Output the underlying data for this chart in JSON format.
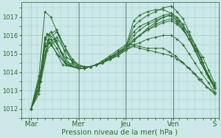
{
  "xlabel": "Pression niveau de la mer( hPa )",
  "bg_color": "#cce8e8",
  "line_color": "#2d6b2d",
  "grid_color": "#a0cccc",
  "label_color": "#2d6b2d",
  "ylim": [
    1011.5,
    1017.8
  ],
  "xlim": [
    0,
    200
  ],
  "day_labels": [
    "Mar",
    "Mer",
    "Jeu",
    "Ven",
    "S"
  ],
  "day_positions": [
    10,
    58,
    106,
    154,
    196
  ],
  "yticks": [
    1012,
    1013,
    1014,
    1015,
    1016,
    1017
  ],
  "ytick_fontsize": 6.5,
  "xtick_fontsize": 7,
  "xlabel_fontsize": 7.5,
  "series": [
    {
      "x": [
        10,
        20,
        28,
        36,
        44,
        52,
        58,
        64,
        70,
        76,
        82,
        90,
        98,
        106,
        114,
        120,
        128,
        136,
        144,
        152,
        158,
        164,
        170,
        176,
        182,
        190,
        196
      ],
      "y": [
        1012.0,
        1013.8,
        1015.8,
        1016.2,
        1015.4,
        1014.7,
        1014.4,
        1014.3,
        1014.3,
        1014.4,
        1014.5,
        1014.8,
        1015.0,
        1015.2,
        1015.5,
        1015.6,
        1015.8,
        1015.9,
        1016.0,
        1016.0,
        1015.8,
        1015.5,
        1015.0,
        1014.5,
        1014.0,
        1013.4,
        1012.9
      ]
    },
    {
      "x": [
        10,
        20,
        28,
        36,
        44,
        52,
        58,
        64,
        70,
        76,
        82,
        90,
        98,
        106,
        114,
        120,
        128,
        136,
        144,
        152,
        158,
        164,
        170,
        176,
        182,
        190,
        196
      ],
      "y": [
        1012.0,
        1013.5,
        1015.6,
        1015.9,
        1015.2,
        1014.6,
        1014.3,
        1014.3,
        1014.3,
        1014.4,
        1014.5,
        1014.7,
        1015.0,
        1015.3,
        1015.8,
        1016.0,
        1016.3,
        1016.5,
        1016.7,
        1016.8,
        1016.6,
        1016.3,
        1015.8,
        1015.2,
        1014.5,
        1013.8,
        1013.2
      ]
    },
    {
      "x": [
        10,
        18,
        26,
        34,
        42,
        50,
        58,
        64,
        70,
        76,
        82,
        90,
        98,
        106,
        114,
        120,
        128,
        136,
        144,
        152,
        158,
        164,
        170,
        176,
        182,
        190,
        196
      ],
      "y": [
        1012.0,
        1013.2,
        1015.2,
        1015.7,
        1015.0,
        1014.4,
        1014.2,
        1014.2,
        1014.3,
        1014.4,
        1014.5,
        1014.7,
        1014.9,
        1015.2,
        1015.7,
        1016.0,
        1016.4,
        1016.7,
        1017.0,
        1017.1,
        1016.8,
        1016.4,
        1015.8,
        1015.2,
        1014.5,
        1013.7,
        1013.1
      ]
    },
    {
      "x": [
        10,
        18,
        26,
        34,
        40,
        48,
        58,
        64,
        70,
        76,
        82,
        90,
        98,
        106,
        114,
        120,
        128,
        136,
        144,
        152,
        158,
        164,
        170,
        176,
        182,
        190,
        196
      ],
      "y": [
        1012.0,
        1013.5,
        1016.1,
        1015.8,
        1015.1,
        1014.4,
        1014.2,
        1014.2,
        1014.3,
        1014.4,
        1014.5,
        1014.8,
        1015.1,
        1015.3,
        1015.7,
        1016.0,
        1016.3,
        1016.6,
        1016.8,
        1016.9,
        1016.7,
        1016.3,
        1015.8,
        1015.2,
        1014.5,
        1013.7,
        1013.1
      ]
    },
    {
      "x": [
        10,
        18,
        24,
        30,
        38,
        46,
        58,
        64,
        70,
        76,
        82,
        90,
        98,
        106,
        114,
        120,
        128,
        136,
        144,
        150,
        156,
        162,
        168,
        174,
        180,
        188,
        196
      ],
      "y": [
        1012.0,
        1013.8,
        1017.3,
        1017.0,
        1016.0,
        1014.8,
        1014.4,
        1014.3,
        1014.3,
        1014.4,
        1014.6,
        1014.9,
        1015.2,
        1015.5,
        1015.5,
        1015.4,
        1015.3,
        1015.3,
        1015.3,
        1015.1,
        1014.9,
        1014.6,
        1014.3,
        1014.0,
        1013.6,
        1013.2,
        1012.8
      ]
    },
    {
      "x": [
        10,
        18,
        24,
        30,
        38,
        46,
        58,
        64,
        70,
        76,
        82,
        90,
        98,
        106,
        114,
        120,
        128,
        136,
        144,
        150,
        158,
        164,
        170,
        178,
        184,
        190,
        196
      ],
      "y": [
        1012.0,
        1013.2,
        1015.9,
        1015.5,
        1014.9,
        1014.4,
        1014.2,
        1014.2,
        1014.3,
        1014.4,
        1014.6,
        1014.8,
        1015.0,
        1015.3,
        1016.0,
        1016.3,
        1016.6,
        1016.8,
        1017.0,
        1017.1,
        1016.8,
        1016.4,
        1015.8,
        1015.2,
        1014.5,
        1013.8,
        1013.1
      ]
    },
    {
      "x": [
        10,
        18,
        24,
        30,
        36,
        44,
        58,
        64,
        70,
        76,
        82,
        90,
        98,
        106,
        114,
        120,
        128,
        136,
        144,
        152,
        158,
        164,
        170,
        176,
        182,
        188,
        196
      ],
      "y": [
        1012.0,
        1013.0,
        1015.8,
        1016.2,
        1015.7,
        1014.6,
        1014.3,
        1014.3,
        1014.3,
        1014.4,
        1014.5,
        1014.8,
        1015.1,
        1015.4,
        1016.2,
        1016.5,
        1016.7,
        1016.9,
        1017.1,
        1017.2,
        1017.0,
        1016.6,
        1016.0,
        1015.3,
        1014.7,
        1013.9,
        1013.2
      ]
    },
    {
      "x": [
        10,
        18,
        24,
        30,
        36,
        44,
        58,
        64,
        70,
        76,
        82,
        90,
        98,
        106,
        114,
        120,
        128,
        136,
        144,
        152,
        158,
        164,
        170,
        176,
        182,
        188,
        196
      ],
      "y": [
        1012.0,
        1013.0,
        1015.5,
        1015.8,
        1015.3,
        1014.5,
        1014.2,
        1014.2,
        1014.3,
        1014.4,
        1014.5,
        1014.7,
        1015.0,
        1015.3,
        1016.5,
        1016.8,
        1017.1,
        1017.3,
        1017.5,
        1017.6,
        1017.3,
        1016.9,
        1016.2,
        1015.5,
        1014.8,
        1014.0,
        1013.3
      ]
    },
    {
      "x": [
        10,
        18,
        24,
        30,
        36,
        42,
        58,
        64,
        70,
        76,
        82,
        90,
        98,
        106,
        114,
        120,
        128,
        136,
        144,
        152,
        158,
        164,
        170,
        176,
        182,
        188,
        196
      ],
      "y": [
        1012.0,
        1012.8,
        1015.4,
        1015.6,
        1015.0,
        1014.4,
        1014.2,
        1014.2,
        1014.3,
        1014.4,
        1014.5,
        1014.7,
        1014.9,
        1015.2,
        1015.4,
        1015.3,
        1015.2,
        1015.1,
        1015.0,
        1014.9,
        1014.7,
        1014.5,
        1014.2,
        1013.9,
        1013.6,
        1013.2,
        1012.9
      ]
    },
    {
      "x": [
        10,
        20,
        28,
        36,
        44,
        52,
        58,
        64,
        70,
        76,
        82,
        90,
        98,
        106,
        114,
        120,
        128,
        136,
        144,
        152,
        160,
        168,
        176,
        184,
        190,
        196
      ],
      "y": [
        1012.0,
        1014.0,
        1016.0,
        1016.3,
        1015.4,
        1014.5,
        1014.2,
        1014.2,
        1014.3,
        1014.4,
        1014.5,
        1014.8,
        1015.1,
        1015.4,
        1016.8,
        1017.1,
        1017.3,
        1017.4,
        1017.4,
        1017.2,
        1016.8,
        1016.2,
        1015.5,
        1014.8,
        1014.1,
        1013.4
      ]
    }
  ]
}
